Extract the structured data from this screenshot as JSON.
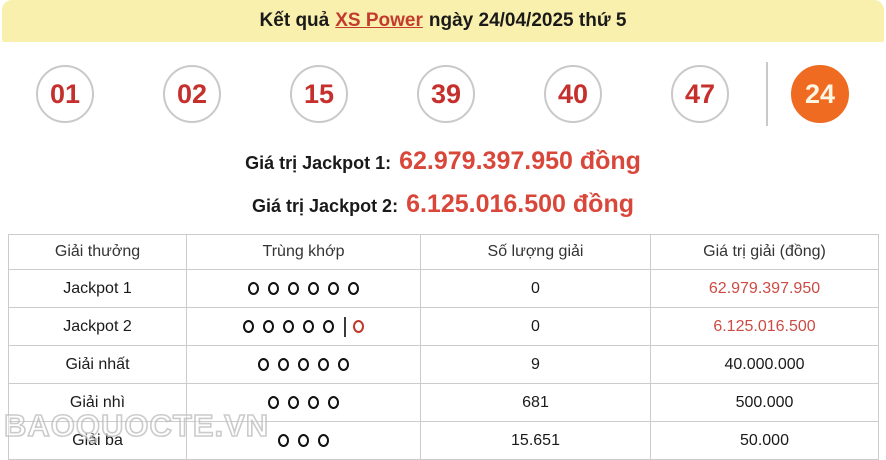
{
  "header": {
    "title_prefix": "Kết quả",
    "title_link": "XS Power",
    "title_suffix": "ngày 24/04/2025 thứ 5"
  },
  "balls": {
    "main": [
      "01",
      "02",
      "15",
      "39",
      "40",
      "47"
    ],
    "power": "24"
  },
  "jackpots": [
    {
      "label": "Giá trị Jackpot 1:",
      "value": "62.979.397.950 đồng"
    },
    {
      "label": "Giá trị Jackpot 2:",
      "value": "6.125.016.500 đồng"
    }
  ],
  "table": {
    "headers": [
      "Giải thưởng",
      "Trùng khớp",
      "Số lượng giải",
      "Giá trị giải (đồng)"
    ],
    "rows": [
      {
        "prize": "Jackpot 1",
        "match_main": 6,
        "match_power": false,
        "count": "0",
        "value": "62.979.397.950",
        "value_red": true
      },
      {
        "prize": "Jackpot 2",
        "match_main": 5,
        "match_power": true,
        "count": "0",
        "value": "6.125.016.500",
        "value_red": true
      },
      {
        "prize": "Giải nhất",
        "match_main": 5,
        "match_power": false,
        "count": "9",
        "value": "40.000.000",
        "value_red": false
      },
      {
        "prize": "Giải nhì",
        "match_main": 4,
        "match_power": false,
        "count": "681",
        "value": "500.000",
        "value_red": false
      },
      {
        "prize": "Giải ba",
        "match_main": 3,
        "match_power": false,
        "count": "15.651",
        "value": "50.000",
        "value_red": false
      }
    ]
  },
  "watermark": "BAOQUOCTE.VN",
  "colors": {
    "banner_yellow": "#faf0ae",
    "link_red": "#c23b2e",
    "number_red": "#c5302d",
    "power_orange": "#ee6b21",
    "jackpot_value_red": "#d9473a",
    "prize_red": "#c0413c",
    "table_value_red": "#cc4b44",
    "border_gray": "#cccccc",
    "circle_black": "#111111",
    "circle_red": "#c0392b"
  }
}
